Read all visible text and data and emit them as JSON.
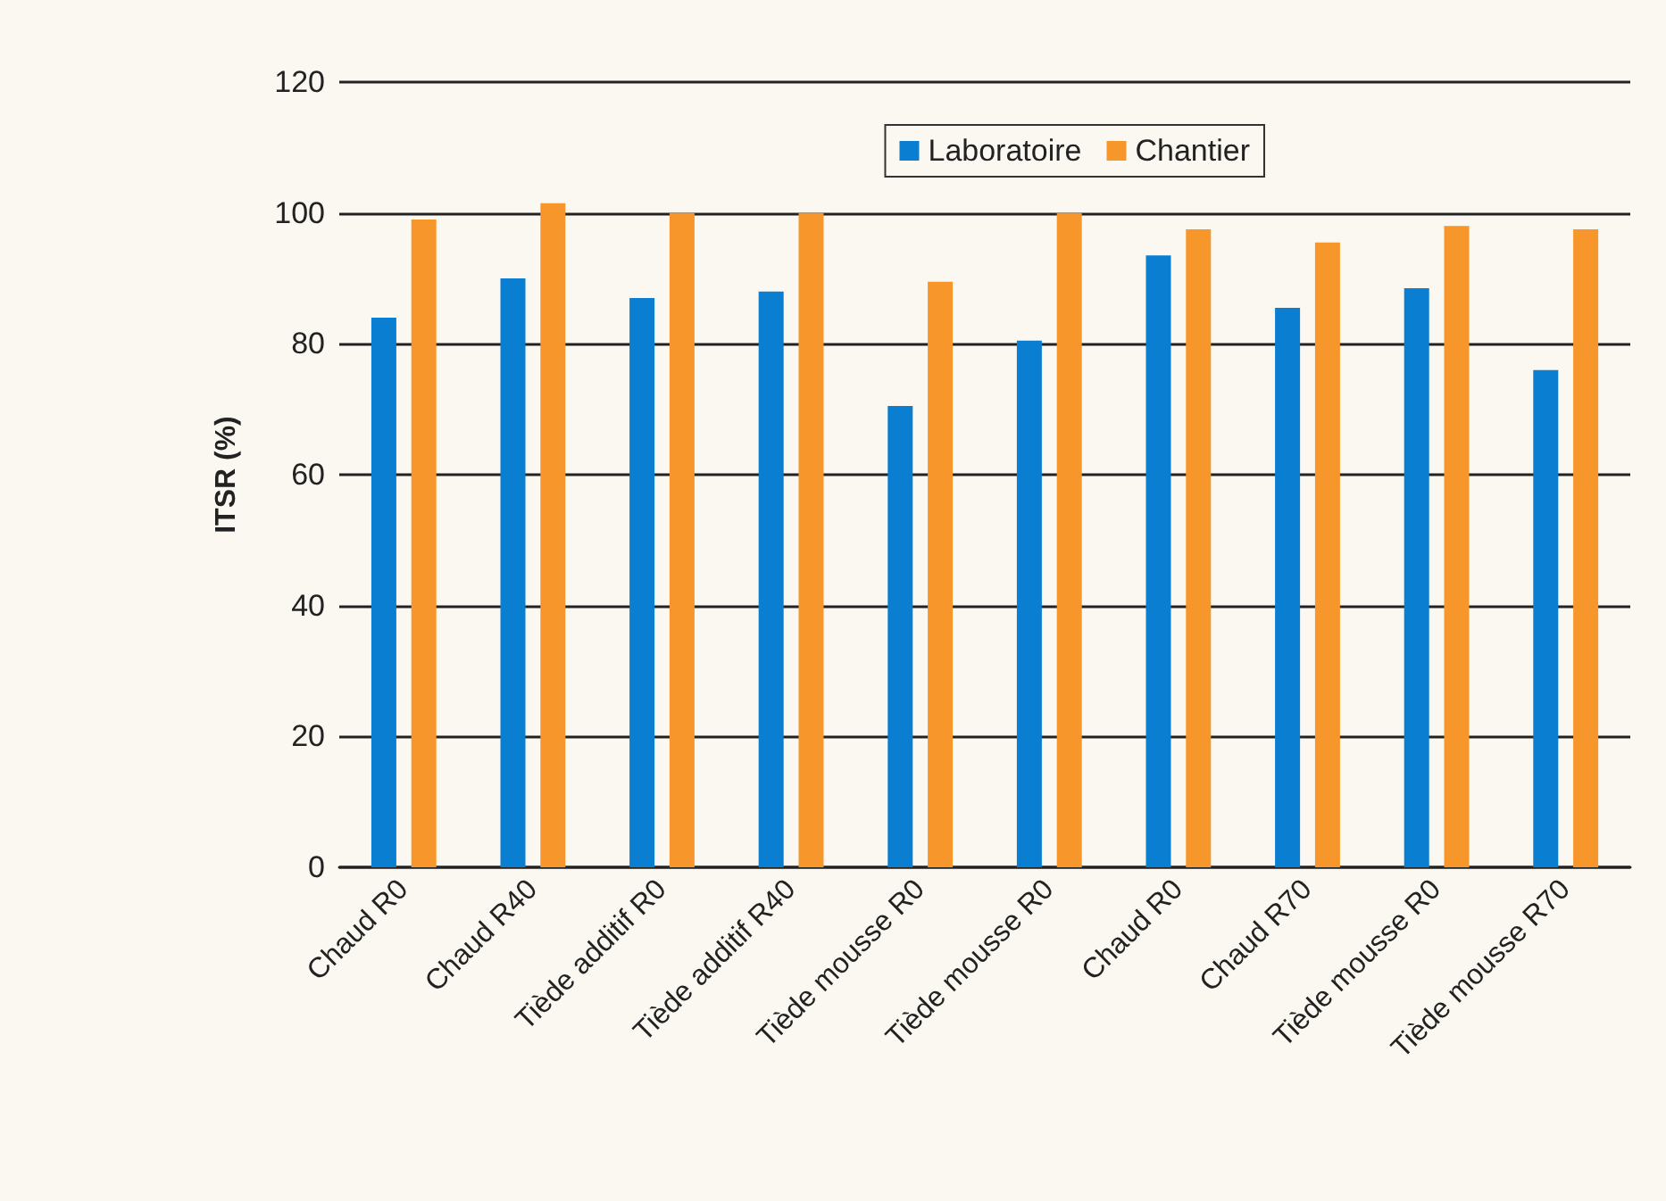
{
  "chart_data": {
    "type": "bar",
    "ylabel": "ITSR (%)",
    "categories": [
      "Chaud R0",
      "Chaud R40",
      "Tiède additif R0",
      "Tiède additif R40",
      "Tiède mousse R0",
      "Tiède mousse R0",
      "Chaud R0",
      "Chaud R70",
      "Tiède mousse R0",
      "Tiède mousse R70"
    ],
    "series": [
      {
        "name": "Laboratoire",
        "color": "#0a7fd1",
        "values": [
          84,
          90,
          87,
          88,
          70.5,
          80.5,
          93.5,
          85.5,
          88.5,
          76
        ]
      },
      {
        "name": "Chantier",
        "color": "#f7962a",
        "values": [
          99,
          101.5,
          100,
          100,
          89.5,
          100,
          97.5,
          95.5,
          98,
          97.5
        ]
      }
    ],
    "ylim": [
      0,
      120
    ],
    "yticks": [
      0,
      20,
      40,
      60,
      80,
      100,
      120
    ],
    "grid": "y",
    "legend": "top right"
  }
}
